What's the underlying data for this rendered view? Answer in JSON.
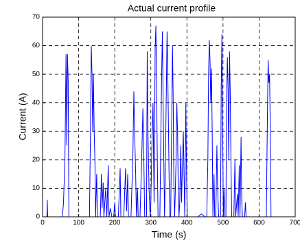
{
  "chart_data": {
    "type": "line",
    "title": "Actual current profile",
    "x_label": "Time (s)",
    "y_label": "Current (A)",
    "x": [
      0,
      12,
      13,
      14,
      55,
      58,
      62,
      65,
      67,
      69,
      71,
      73,
      125,
      130,
      133,
      135,
      137,
      139,
      141,
      143,
      145,
      147,
      150,
      152,
      160,
      163,
      165,
      168,
      170,
      175,
      178,
      182,
      184,
      188,
      192,
      197,
      200,
      202,
      210,
      215,
      217,
      225,
      230,
      233,
      236,
      238,
      245,
      250,
      253,
      255,
      258,
      260,
      263,
      265,
      270,
      275,
      278,
      280,
      283,
      288,
      290,
      292,
      295,
      298,
      300,
      303,
      306,
      309,
      312,
      314,
      316,
      318,
      320,
      325,
      328,
      330,
      332,
      334,
      336,
      338,
      340,
      343,
      345,
      347,
      349,
      351,
      353,
      355,
      358,
      360,
      362,
      364,
      366,
      370,
      372,
      374,
      376,
      378,
      380,
      383,
      385,
      388,
      390,
      392,
      394,
      397,
      399,
      401,
      410,
      430,
      440,
      450,
      455,
      458,
      460,
      462,
      464,
      466,
      468,
      470,
      472,
      475,
      477,
      480,
      483,
      485,
      488,
      493,
      495,
      497,
      499,
      501,
      503,
      505,
      508,
      510,
      512,
      514,
      516,
      518,
      520,
      522,
      524,
      530,
      533,
      535,
      540,
      542,
      545,
      547,
      550,
      552,
      554,
      560,
      562,
      564,
      610,
      620,
      623,
      625,
      627,
      629,
      631,
      633,
      640,
      650
    ],
    "series": [
      {
        "name": "Current",
        "color": "#0000ff",
        "values": [
          0,
          0,
          6,
          0,
          0,
          5,
          20,
          57,
          25,
          57,
          48,
          0,
          0,
          0,
          33,
          60,
          50,
          30,
          50,
          30,
          20,
          0,
          15,
          0,
          0,
          15,
          3,
          12,
          0,
          10,
          0,
          18,
          0,
          3,
          0,
          0,
          5,
          0,
          0,
          17,
          0,
          0,
          17,
          2,
          15,
          0,
          0,
          20,
          44,
          30,
          15,
          0,
          10,
          0,
          0,
          22,
          38,
          25,
          0,
          0,
          58,
          30,
          10,
          0,
          5,
          25,
          40,
          5,
          59,
          67,
          45,
          20,
          0,
          0,
          30,
          50,
          65,
          40,
          20,
          0,
          15,
          45,
          65,
          50,
          30,
          10,
          0,
          0,
          35,
          60,
          40,
          10,
          0,
          20,
          40,
          30,
          10,
          0,
          5,
          25,
          5,
          20,
          30,
          15,
          0,
          40,
          15,
          0,
          0,
          0,
          1,
          0,
          0,
          20,
          50,
          62,
          55,
          40,
          52,
          30,
          0,
          15,
          0,
          0,
          25,
          10,
          0,
          0,
          45,
          64,
          30,
          0,
          10,
          0,
          0,
          40,
          56,
          45,
          20,
          58,
          44,
          20,
          0,
          0,
          20,
          0,
          8,
          0,
          18,
          0,
          28,
          5,
          0,
          0,
          5,
          0,
          0,
          0,
          35,
          55,
          47,
          50,
          30,
          0,
          0,
          0
        ]
      }
    ],
    "xlim": [
      0,
      700
    ],
    "ylim": [
      0,
      70
    ],
    "xticks": [
      0,
      100,
      200,
      300,
      400,
      500,
      600,
      700
    ],
    "yticks": [
      0,
      10,
      20,
      30,
      40,
      50,
      60,
      70
    ],
    "grid": true
  }
}
